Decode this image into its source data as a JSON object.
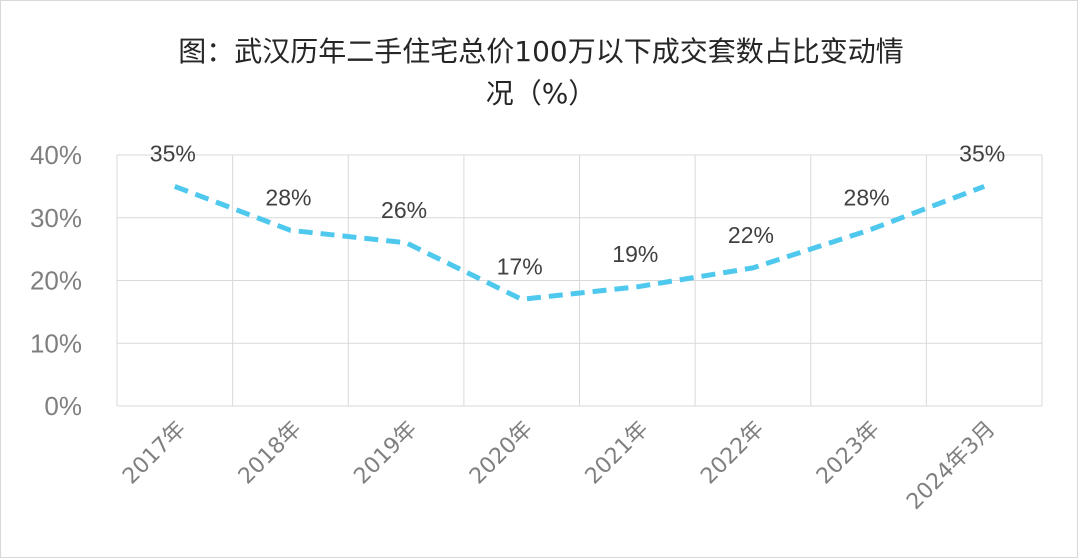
{
  "chart_data": {
    "type": "line",
    "title": "图：武汉历年二手住宅总价100万以下成交套数占比变动情\n况（%）",
    "categories": [
      "2017年",
      "2018年",
      "2019年",
      "2020年",
      "2021年",
      "2022年",
      "2023年",
      "2024年3月"
    ],
    "series": [
      {
        "values": [
          35,
          28,
          26,
          17,
          19,
          22,
          28,
          35
        ]
      }
    ],
    "data_labels": [
      "35%",
      "28%",
      "26%",
      "17%",
      "19%",
      "22%",
      "28%",
      "35%"
    ],
    "y_ticks": [
      "0%",
      "10%",
      "20%",
      "30%",
      "40%"
    ],
    "ylim": [
      0,
      40
    ],
    "grid": true,
    "legend": "none",
    "line_style": "dashed",
    "color": "#4FC8EE",
    "grid_color": "#d9d9d9"
  }
}
